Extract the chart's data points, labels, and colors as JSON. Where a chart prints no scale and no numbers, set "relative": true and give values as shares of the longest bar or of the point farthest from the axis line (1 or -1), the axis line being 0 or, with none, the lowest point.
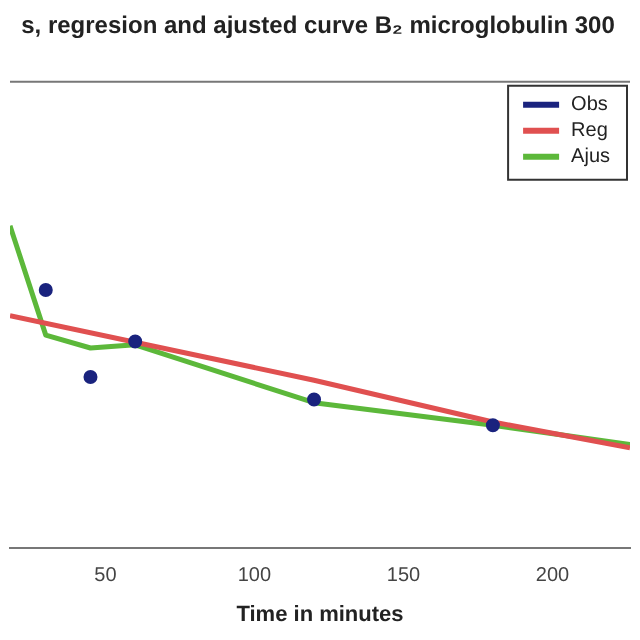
{
  "chart_data": {
    "type": "line",
    "title": "s, regresion and ajusted curve B₂ microglobulin 300",
    "xlabel": "Time in minutes",
    "relative": true,
    "xlim": [
      18,
      226
    ],
    "xticks": [
      50,
      100,
      150,
      200
    ],
    "grid": false,
    "legend": "top right",
    "series": [
      {
        "name": "Obs",
        "type": "scatter",
        "marker": "circle",
        "color": "#1a237e",
        "x": [
          30,
          45,
          60,
          120,
          180
        ],
        "values": [
          0.8,
          0.53,
          0.64,
          0.46,
          0.38
        ]
      },
      {
        "name": "Reg",
        "color": "#e05050",
        "x": [
          18,
          120,
          180,
          226
        ],
        "values": [
          0.72,
          0.52,
          0.39,
          0.31
        ]
      },
      {
        "name": "Ajus",
        "color": "#5cb83a",
        "x": [
          18,
          30,
          45,
          60,
          120,
          180,
          226
        ],
        "values": [
          1,
          0.66,
          0.62,
          0.63,
          0.45,
          0.38,
          0.32
        ]
      }
    ]
  }
}
